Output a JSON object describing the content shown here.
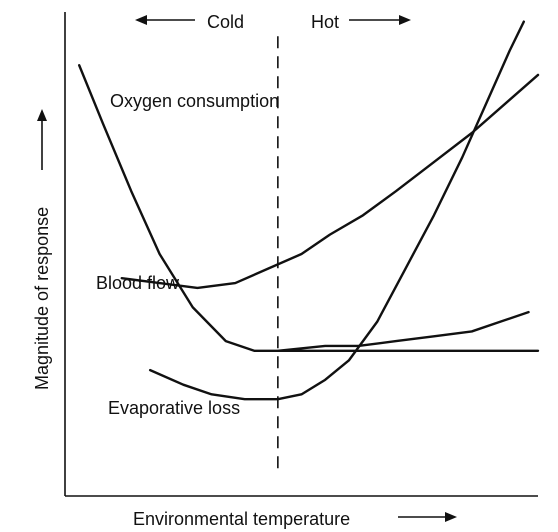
{
  "chart_data": {
    "type": "line",
    "title": "",
    "xlabel": "Environmental temperature",
    "ylabel": "Magnitude of response",
    "xlim": [
      0,
      100
    ],
    "ylim": [
      0,
      100
    ],
    "grid": false,
    "legend": "none",
    "divider": {
      "x": 45,
      "left_label": "Cold",
      "right_label": "Hot"
    },
    "series": [
      {
        "name": "Oxygen consumption",
        "x": [
          3,
          8,
          14,
          20,
          27,
          34,
          40,
          45,
          55,
          65,
          75,
          85,
          92,
          100
        ],
        "y": [
          89,
          77,
          63,
          50,
          39,
          32,
          30,
          30,
          30,
          30,
          30,
          30,
          30,
          30
        ]
      },
      {
        "name": "Blood flow",
        "x": [
          12,
          20,
          28,
          36,
          43,
          50,
          56,
          63,
          70,
          78,
          86,
          100
        ],
        "y": [
          45,
          44,
          43,
          44,
          47,
          50,
          54,
          58,
          63,
          69,
          75,
          87
        ]
      },
      {
        "name": "Evaporative loss",
        "x": [
          18,
          25,
          31,
          38,
          45,
          50,
          55,
          60,
          66,
          72,
          78,
          84,
          89,
          94,
          97
        ],
        "y": [
          26,
          23,
          21,
          20,
          20,
          21,
          24,
          28,
          36,
          47,
          58,
          70,
          81,
          92,
          98
        ]
      },
      {
        "name": "Oxygen consumption",
        "x": [
          45,
          55,
          62,
          70,
          78,
          86,
          92,
          98
        ],
        "y": [
          30,
          31,
          31,
          32,
          33,
          34,
          36,
          38
        ]
      }
    ]
  }
}
